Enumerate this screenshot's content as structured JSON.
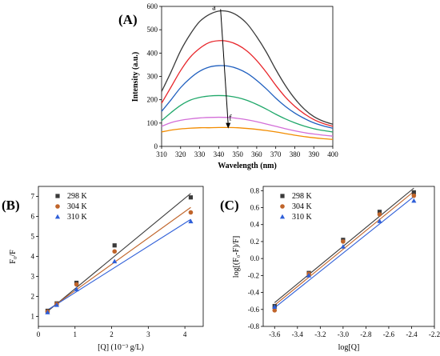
{
  "chart_data": [
    {
      "id": "A",
      "type": "line",
      "panel_label": "(A)",
      "xlabel": "Wavelength (nm)",
      "ylabel": "Intensity (a.u.)",
      "xlim": [
        310,
        400
      ],
      "ylim": [
        0,
        600
      ],
      "xticks": [
        "310",
        "320",
        "330",
        "340",
        "350",
        "360",
        "370",
        "380",
        "390",
        "400"
      ],
      "yticks": [
        "0",
        "100",
        "200",
        "300",
        "400",
        "500",
        "600"
      ],
      "x": [
        310,
        315,
        320,
        325,
        330,
        335,
        340,
        345,
        350,
        355,
        360,
        365,
        370,
        375,
        380,
        385,
        390,
        395,
        400
      ],
      "series": [
        {
          "color": "#3a3a3a",
          "values": [
            235,
            320,
            410,
            480,
            535,
            565,
            580,
            578,
            560,
            525,
            470,
            405,
            330,
            262,
            205,
            160,
            128,
            108,
            95
          ]
        },
        {
          "color": "#e8262b",
          "values": [
            185,
            255,
            325,
            382,
            420,
            445,
            453,
            450,
            435,
            408,
            368,
            318,
            262,
            212,
            172,
            140,
            115,
            98,
            86
          ]
        },
        {
          "color": "#1f5fbf",
          "values": [
            150,
            200,
            252,
            292,
            322,
            340,
            346,
            344,
            333,
            313,
            283,
            247,
            207,
            172,
            143,
            120,
            101,
            88,
            78
          ]
        },
        {
          "color": "#20a86a",
          "values": [
            110,
            145,
            176,
            198,
            210,
            216,
            218,
            216,
            209,
            197,
            180,
            160,
            138,
            118,
            101,
            87,
            76,
            68,
            62
          ]
        },
        {
          "color": "#d36ed8",
          "values": [
            86,
            102,
            112,
            118,
            122,
            124,
            125,
            124,
            120,
            114,
            106,
            96,
            86,
            76,
            67,
            59,
            53,
            48,
            44
          ]
        },
        {
          "color": "#f28c00",
          "values": [
            62,
            70,
            75,
            78,
            80,
            80,
            81,
            81,
            80,
            77,
            73,
            68,
            62,
            55,
            48,
            42,
            37,
            33,
            30
          ]
        }
      ],
      "annotations": {
        "start": "a",
        "end": "f",
        "arrow_from": [
          341,
          588
        ],
        "arrow_to": [
          345,
          80
        ]
      }
    },
    {
      "id": "B",
      "type": "scatter",
      "panel_label": "(B)",
      "xlabel": "[Q] (10⁻³ g/L)",
      "ylabel": "F₀/F",
      "xlim": [
        0,
        4.5
      ],
      "ylim": [
        0.5,
        7.5
      ],
      "xticks": [
        "0",
        "1",
        "2",
        "3",
        "4"
      ],
      "yticks": [
        "1",
        "2",
        "3",
        "4",
        "5",
        "6",
        "7"
      ],
      "x": [
        0.25,
        0.5,
        1.04,
        2.08,
        4.16
      ],
      "legend": {
        "position": "top-left",
        "entries": [
          "298 K",
          "304 K",
          "310 K"
        ]
      },
      "series": [
        {
          "name": "298 K",
          "marker": "square",
          "color": "#3a3a3a",
          "values": [
            1.28,
            1.65,
            2.68,
            4.55,
            6.95
          ],
          "fit": [
            1.25,
            7.15
          ]
        },
        {
          "name": "304 K",
          "marker": "circle",
          "color": "#c0642a",
          "values": [
            1.24,
            1.62,
            2.6,
            4.25,
            6.2
          ],
          "fit": [
            1.3,
            6.45
          ]
        },
        {
          "name": "310 K",
          "marker": "triangle",
          "color": "#2f5fd8",
          "values": [
            1.2,
            1.57,
            2.35,
            3.75,
            5.75
          ],
          "fit": [
            1.32,
            5.85
          ]
        }
      ]
    },
    {
      "id": "C",
      "type": "scatter",
      "panel_label": "(C)",
      "xlabel": "log[Q]",
      "ylabel": "log[(F₀-F)/F]",
      "xlim": [
        -3.7,
        -2.2
      ],
      "ylim": [
        -0.8,
        0.85
      ],
      "xticks": [
        "-3.6",
        "-3.4",
        "-3.2",
        "-3.0",
        "-2.8",
        "-2.6",
        "-2.4",
        "-2.2"
      ],
      "yticks": [
        "-0.8",
        "-0.6",
        "-0.4",
        "-0.2",
        "0.0",
        "0.2",
        "0.4",
        "0.6",
        "0.8"
      ],
      "x": [
        -3.6,
        -3.3,
        -3.0,
        -2.68,
        -2.38
      ],
      "legend": {
        "position": "top-left",
        "entries": [
          "298 K",
          "304 K",
          "310 K"
        ]
      },
      "series": [
        {
          "name": "298 K",
          "marker": "square",
          "color": "#3a3a3a",
          "values": [
            -0.56,
            -0.17,
            0.22,
            0.55,
            0.78
          ],
          "fit": [
            -0.52,
            0.83
          ]
        },
        {
          "name": "304 K",
          "marker": "circle",
          "color": "#c0642a",
          "values": [
            -0.61,
            -0.18,
            0.2,
            0.52,
            0.74
          ],
          "fit": [
            -0.55,
            0.79
          ]
        },
        {
          "name": "310 K",
          "marker": "triangle",
          "color": "#2f5fd8",
          "values": [
            -0.57,
            -0.2,
            0.14,
            0.44,
            0.68
          ],
          "fit": [
            -0.58,
            0.73
          ]
        }
      ]
    }
  ]
}
